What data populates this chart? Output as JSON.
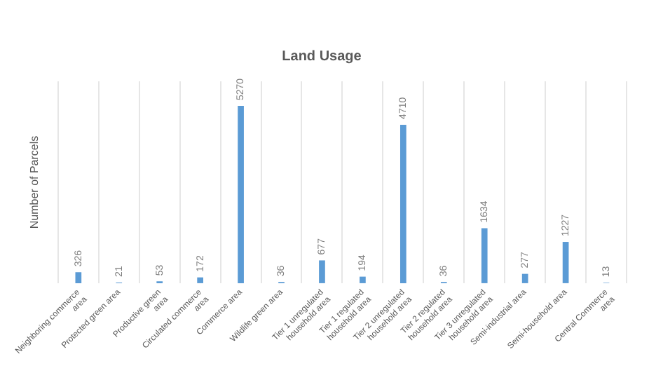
{
  "chart_data": {
    "type": "bar",
    "title": "Land Usage",
    "ylabel": "Number of Parcels",
    "categories": [
      "Neighboring commerce area",
      "Protected green area",
      "Productive green area",
      "Circulated commerce area",
      "Commerce area",
      "Wildlife green area",
      "Tier 1 unregulated household area",
      "Tier 1 regulated household area",
      "Tier 2 unregulated household area",
      "Tier 2 regulated household area",
      "Tier 3 unregulated household area",
      "Semi-industrial area",
      "Semi-household area",
      "Central Commerce area"
    ],
    "values": [
      326,
      21,
      53,
      172,
      5270,
      36,
      677,
      194,
      4710,
      36,
      1634,
      277,
      1227,
      13
    ],
    "color": "#5b9bd5",
    "data_labels": true,
    "grid": "x"
  }
}
